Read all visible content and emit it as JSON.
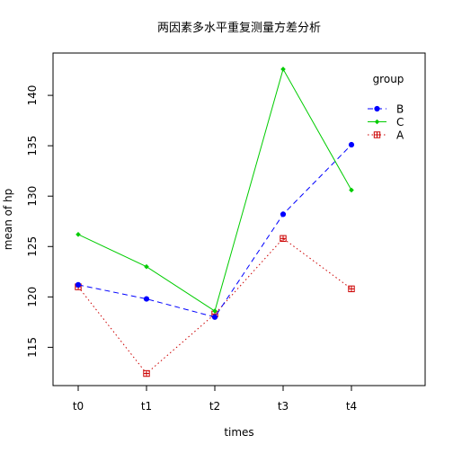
{
  "chart_data": {
    "type": "line",
    "title": "两因素多水平重复测量方差分析",
    "xlabel": "times",
    "ylabel": "mean of  hp",
    "categories": [
      "t0",
      "t1",
      "t2",
      "t3",
      "t4"
    ],
    "ylim": [
      111.2,
      144.2
    ],
    "yticks": [
      115,
      120,
      125,
      130,
      135,
      140
    ],
    "grid": false,
    "legend": {
      "title": "group",
      "position": "top-right",
      "order": [
        "B",
        "C",
        "A"
      ]
    },
    "series": [
      {
        "name": "A",
        "values": [
          121.0,
          112.4,
          118.3,
          125.8,
          120.8
        ],
        "color": "#cc0000",
        "line": "dotted",
        "marker": "square-plus"
      },
      {
        "name": "B",
        "values": [
          121.2,
          119.8,
          118.0,
          128.2,
          135.1
        ],
        "color": "#0000ff",
        "line": "dashed",
        "marker": "circle"
      },
      {
        "name": "C",
        "values": [
          126.2,
          123.0,
          118.6,
          142.6,
          130.6
        ],
        "color": "#00cc00",
        "line": "solid",
        "marker": "diamond"
      }
    ]
  }
}
